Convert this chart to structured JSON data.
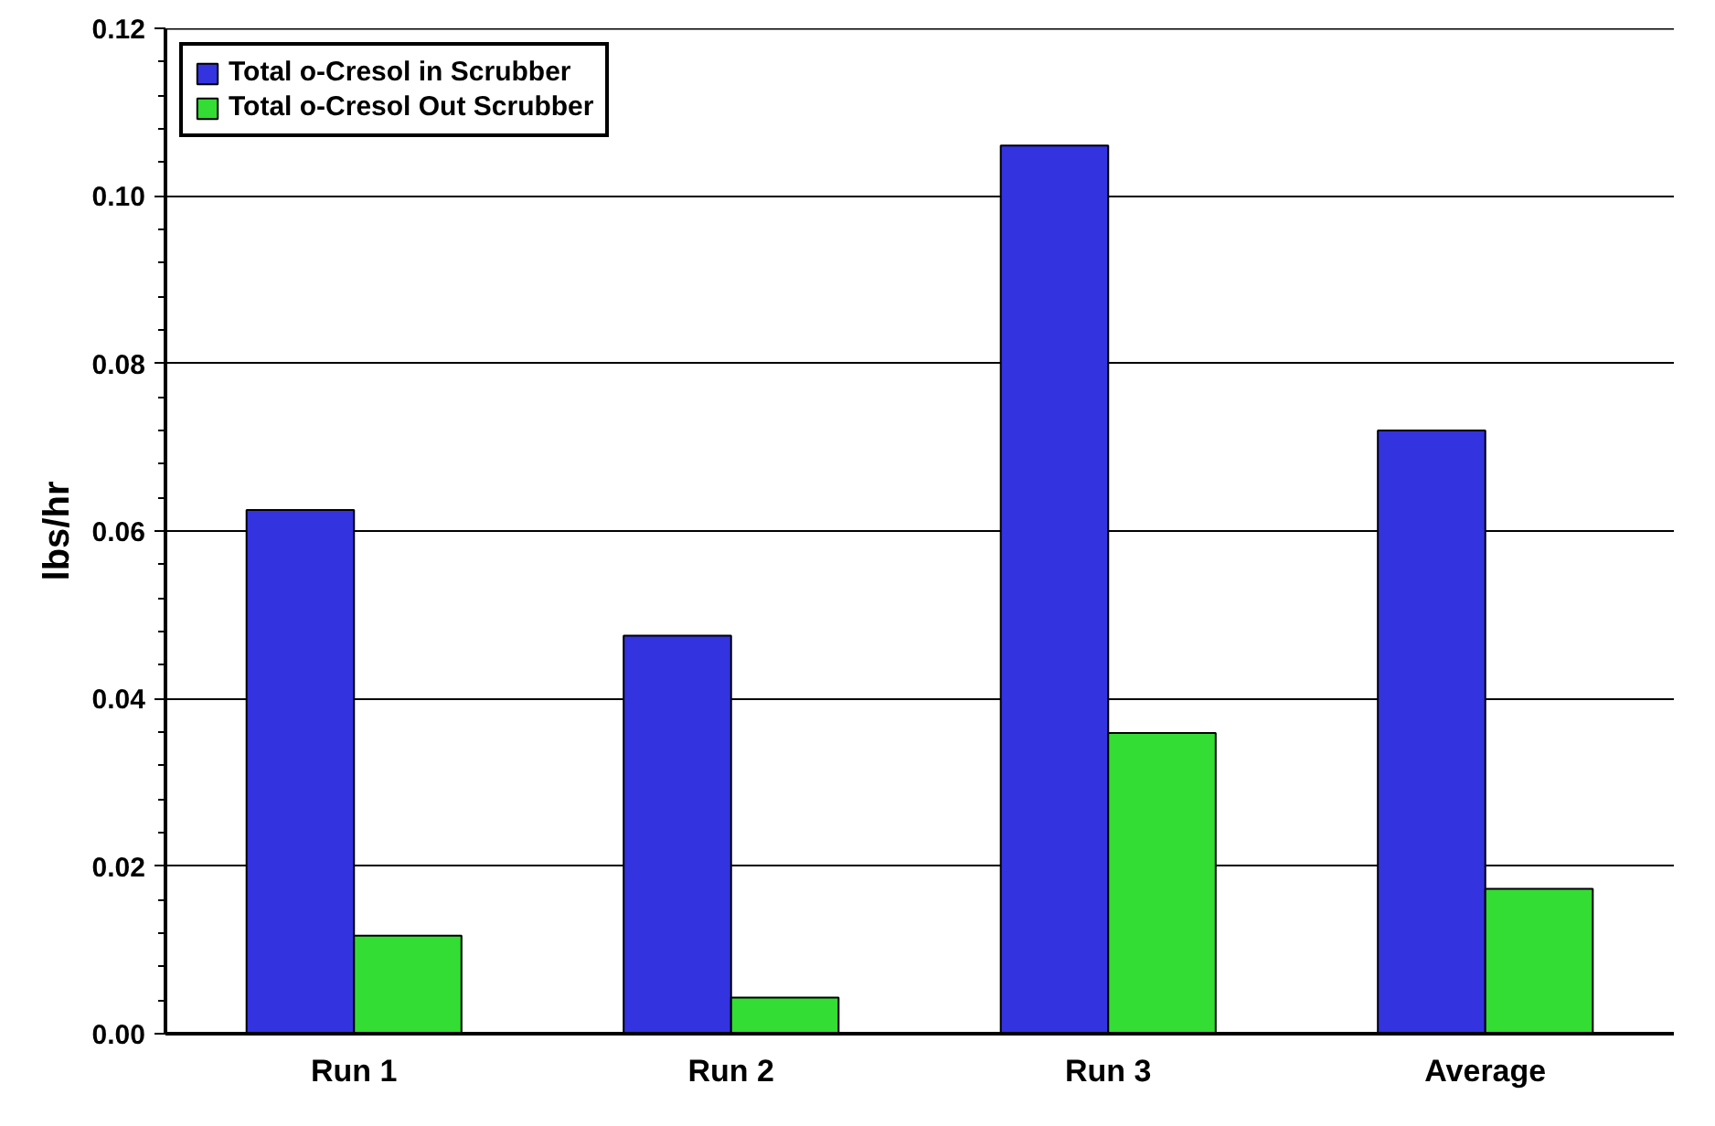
{
  "chart_data": {
    "type": "bar",
    "ylabel": "lbs/hr",
    "categories": [
      "Run 1",
      "Run 2",
      "Run 3",
      "Average"
    ],
    "series": [
      {
        "name": "Total o-Cresol in Scrubber",
        "color": "#3333e0",
        "values": [
          0.0625,
          0.0475,
          0.106,
          0.072
        ]
      },
      {
        "name": "Total o-Cresol Out Scrubber",
        "color": "#33dd33",
        "values": [
          0.0117,
          0.0043,
          0.0359,
          0.0173
        ]
      }
    ],
    "ylim": [
      0,
      0.12
    ],
    "yticks": [
      {
        "value": 0,
        "label": "0.00"
      },
      {
        "value": 0.02,
        "label": "0.02"
      },
      {
        "value": 0.04,
        "label": "0.04"
      },
      {
        "value": 0.06,
        "label": "0.06"
      },
      {
        "value": 0.08,
        "label": "0.08"
      },
      {
        "value": 0.1,
        "label": "0.10"
      },
      {
        "value": 0.12,
        "label": "0.12"
      }
    ],
    "grid": "y",
    "legend": "top left"
  }
}
